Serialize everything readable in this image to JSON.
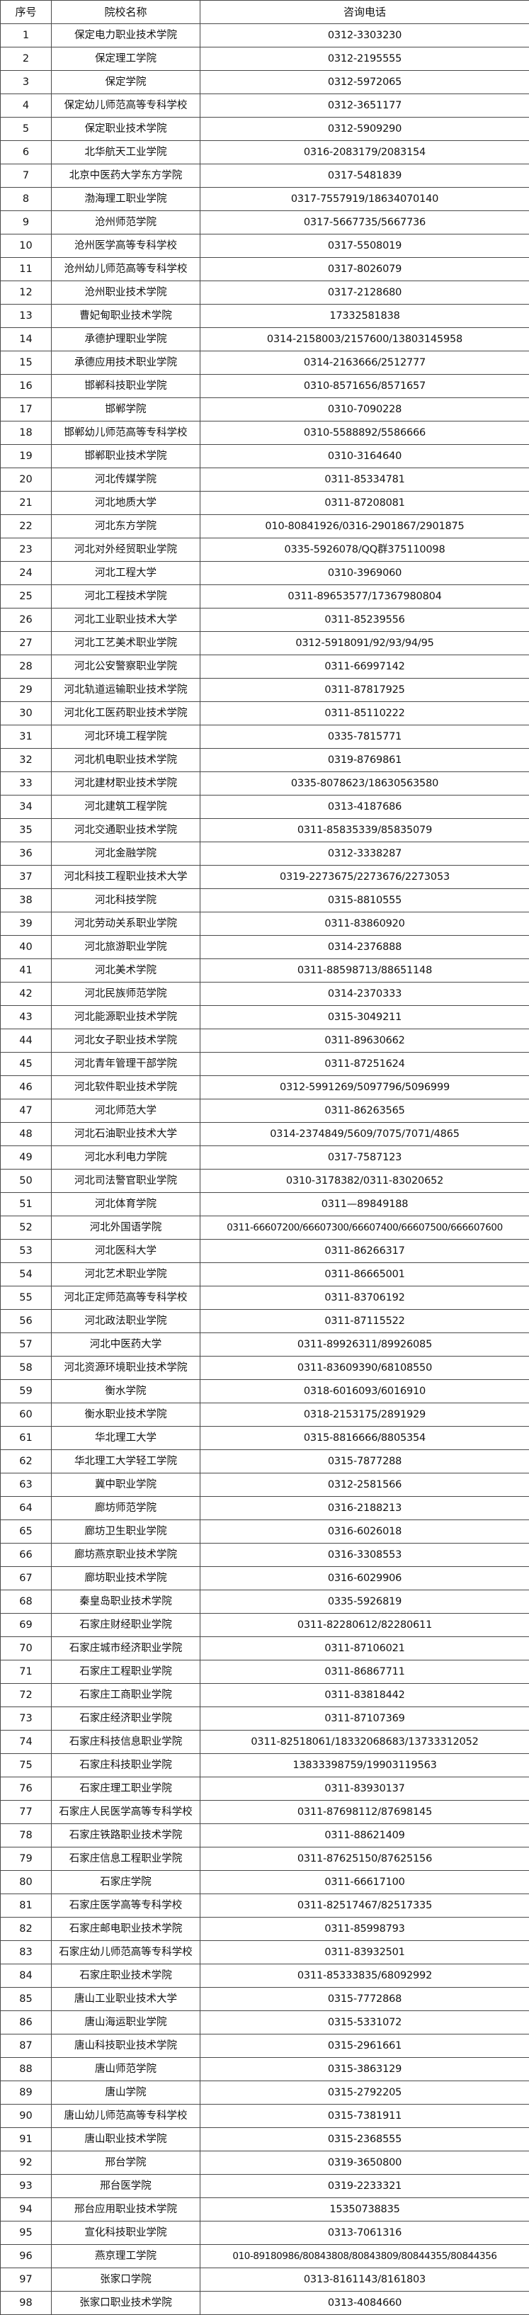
{
  "table": {
    "headers": [
      "序号",
      "院校名称",
      "咨询电话"
    ],
    "rows": [
      [
        "1",
        "保定电力职业技术学院",
        "0312-3303230"
      ],
      [
        "2",
        "保定理工学院",
        "0312-2195555"
      ],
      [
        "3",
        "保定学院",
        "0312-5972065"
      ],
      [
        "4",
        "保定幼儿师范高等专科学校",
        "0312-3651177"
      ],
      [
        "5",
        "保定职业技术学院",
        "0312-5909290"
      ],
      [
        "6",
        "北华航天工业学院",
        "0316-2083179/2083154"
      ],
      [
        "7",
        "北京中医药大学东方学院",
        "0317-5481839"
      ],
      [
        "8",
        "渤海理工职业学院",
        "0317-7557919/18634070140"
      ],
      [
        "9",
        "沧州师范学院",
        "0317-5667735/5667736"
      ],
      [
        "10",
        "沧州医学高等专科学校",
        "0317-5508019"
      ],
      [
        "11",
        "沧州幼儿师范高等专科学校",
        "0317-8026079"
      ],
      [
        "12",
        "沧州职业技术学院",
        "0317-2128680"
      ],
      [
        "13",
        "曹妃甸职业技术学院",
        "17332581838"
      ],
      [
        "14",
        "承德护理职业学院",
        "0314-2158003/2157600/13803145958"
      ],
      [
        "15",
        "承德应用技术职业学院",
        "0314-2163666/2512777"
      ],
      [
        "16",
        "邯郸科技职业学院",
        "0310-8571656/8571657"
      ],
      [
        "17",
        "邯郸学院",
        "0310-7090228"
      ],
      [
        "18",
        "邯郸幼儿师范高等专科学校",
        "0310-5588892/5586666"
      ],
      [
        "19",
        "邯郸职业技术学院",
        "0310-3164640"
      ],
      [
        "20",
        "河北传媒学院",
        "0311-85334781"
      ],
      [
        "21",
        "河北地质大学",
        "0311-87208081"
      ],
      [
        "22",
        "河北东方学院",
        "010-80841926/0316-2901867/2901875"
      ],
      [
        "23",
        "河北对外经贸职业学院",
        "0335-5926078/QQ群375110098"
      ],
      [
        "24",
        "河北工程大学",
        "0310-3969060"
      ],
      [
        "25",
        "河北工程技术学院",
        "0311-89653577/17367980804"
      ],
      [
        "26",
        "河北工业职业技术大学",
        "0311-85239556"
      ],
      [
        "27",
        "河北工艺美术职业学院",
        "0312-5918091/92/93/94/95"
      ],
      [
        "28",
        "河北公安警察职业学院",
        "0311-66997142"
      ],
      [
        "29",
        "河北轨道运输职业技术学院",
        "0311-87817925"
      ],
      [
        "30",
        "河北化工医药职业技术学院",
        "0311-85110222"
      ],
      [
        "31",
        "河北环境工程学院",
        "0335-7815771"
      ],
      [
        "32",
        "河北机电职业技术学院",
        "0319-8769861"
      ],
      [
        "33",
        "河北建材职业技术学院",
        "0335-8078623/18630563580"
      ],
      [
        "34",
        "河北建筑工程学院",
        "0313-4187686"
      ],
      [
        "35",
        "河北交通职业技术学院",
        "0311-85835339/85835079"
      ],
      [
        "36",
        "河北金融学院",
        "0312-3338287"
      ],
      [
        "37",
        "河北科技工程职业技术大学",
        "0319-2273675/2273676/2273053"
      ],
      [
        "38",
        "河北科技学院",
        "0315-8810555"
      ],
      [
        "39",
        "河北劳动关系职业学院",
        "0311-83860920"
      ],
      [
        "40",
        "河北旅游职业学院",
        "0314-2376888"
      ],
      [
        "41",
        "河北美术学院",
        "0311-88598713/88651148"
      ],
      [
        "42",
        "河北民族师范学院",
        "0314-2370333"
      ],
      [
        "43",
        "河北能源职业技术学院",
        "0315-3049211"
      ],
      [
        "44",
        "河北女子职业技术学院",
        "0311-89630662"
      ],
      [
        "45",
        "河北青年管理干部学院",
        "0311-87251624"
      ],
      [
        "46",
        "河北软件职业技术学院",
        "0312-5991269/5097796/5096999"
      ],
      [
        "47",
        "河北师范大学",
        "0311-86263565"
      ],
      [
        "48",
        "河北石油职业技术大学",
        "0314-2374849/5609/7075/7071/4865"
      ],
      [
        "49",
        "河北水利电力学院",
        "0317-7587123"
      ],
      [
        "50",
        "河北司法警官职业学院",
        "0310-3178382/0311-83020652"
      ],
      [
        "51",
        "河北体育学院",
        "0311—89849188"
      ],
      [
        "52",
        "河北外国语学院",
        "0311-66607200/66607300/66607400/66607500/666607600"
      ],
      [
        "53",
        "河北医科大学",
        "0311-86266317"
      ],
      [
        "54",
        "河北艺术职业学院",
        "0311-86665001"
      ],
      [
        "55",
        "河北正定师范高等专科学校",
        "0311-83706192"
      ],
      [
        "56",
        "河北政法职业学院",
        "0311-87115522"
      ],
      [
        "57",
        "河北中医药大学",
        "0311-89926311/89926085"
      ],
      [
        "58",
        "河北资源环境职业技术学院",
        "0311-83609390/68108550"
      ],
      [
        "59",
        "衡水学院",
        "0318-6016093/6016910"
      ],
      [
        "60",
        "衡水职业技术学院",
        "0318-2153175/2891929"
      ],
      [
        "61",
        "华北理工大学",
        "0315-8816666/8805354"
      ],
      [
        "62",
        "华北理工大学轻工学院",
        "0315-7877288"
      ],
      [
        "63",
        "冀中职业学院",
        "0312-2581566"
      ],
      [
        "64",
        "廊坊师范学院",
        "0316-2188213"
      ],
      [
        "65",
        "廊坊卫生职业学院",
        "0316-6026018"
      ],
      [
        "66",
        "廊坊燕京职业技术学院",
        "0316-3308553"
      ],
      [
        "67",
        "廊坊职业技术学院",
        "0316-6029906"
      ],
      [
        "68",
        "秦皇岛职业技术学院",
        "0335-5926819"
      ],
      [
        "69",
        "石家庄财经职业学院",
        "0311-82280612/82280611"
      ],
      [
        "70",
        "石家庄城市经济职业学院",
        "0311-87106021"
      ],
      [
        "71",
        "石家庄工程职业学院",
        "0311-86867711"
      ],
      [
        "72",
        "石家庄工商职业学院",
        "0311-83818442"
      ],
      [
        "73",
        "石家庄经济职业学院",
        "0311-87107369"
      ],
      [
        "74",
        "石家庄科技信息职业学院",
        "0311-82518061/18332068683/13733312052"
      ],
      [
        "75",
        "石家庄科技职业学院",
        "13833398759/19903119563"
      ],
      [
        "76",
        "石家庄理工职业学院",
        "0311-83930137"
      ],
      [
        "77",
        "石家庄人民医学高等专科学校",
        "0311-87698112/87698145"
      ],
      [
        "78",
        "石家庄铁路职业技术学院",
        "0311-88621409"
      ],
      [
        "79",
        "石家庄信息工程职业学院",
        "0311-87625150/87625156"
      ],
      [
        "80",
        "石家庄学院",
        "0311-66617100"
      ],
      [
        "81",
        "石家庄医学高等专科学校",
        "0311-82517467/82517335"
      ],
      [
        "82",
        "石家庄邮电职业技术学院",
        "0311-85998793"
      ],
      [
        "83",
        "石家庄幼儿师范高等专科学校",
        "0311-83932501"
      ],
      [
        "84",
        "石家庄职业技术学院",
        "0311-85333835/68092992"
      ],
      [
        "85",
        "唐山工业职业技术大学",
        "0315-7772868"
      ],
      [
        "86",
        "唐山海运职业学院",
        "0315-5331072"
      ],
      [
        "87",
        "唐山科技职业技术学院",
        "0315-2961661"
      ],
      [
        "88",
        "唐山师范学院",
        "0315-3863129"
      ],
      [
        "89",
        "唐山学院",
        "0315-2792205"
      ],
      [
        "90",
        "唐山幼儿师范高等专科学校",
        "0315-7381911"
      ],
      [
        "91",
        "唐山职业技术学院",
        "0315-2368555"
      ],
      [
        "92",
        "邢台学院",
        "0319-3650800"
      ],
      [
        "93",
        "邢台医学院",
        "0319-2233321"
      ],
      [
        "94",
        "邢台应用职业技术学院",
        "15350738835"
      ],
      [
        "95",
        "宣化科技职业学院",
        "0313-7061316"
      ],
      [
        "96",
        "燕京理工学院",
        "010-89180986/80843808/80843809/80844355/80844356"
      ],
      [
        "97",
        "张家口学院",
        "0313-8161143/8161803"
      ],
      [
        "98",
        "张家口职业技术学院",
        "0313-4084660"
      ]
    ]
  }
}
